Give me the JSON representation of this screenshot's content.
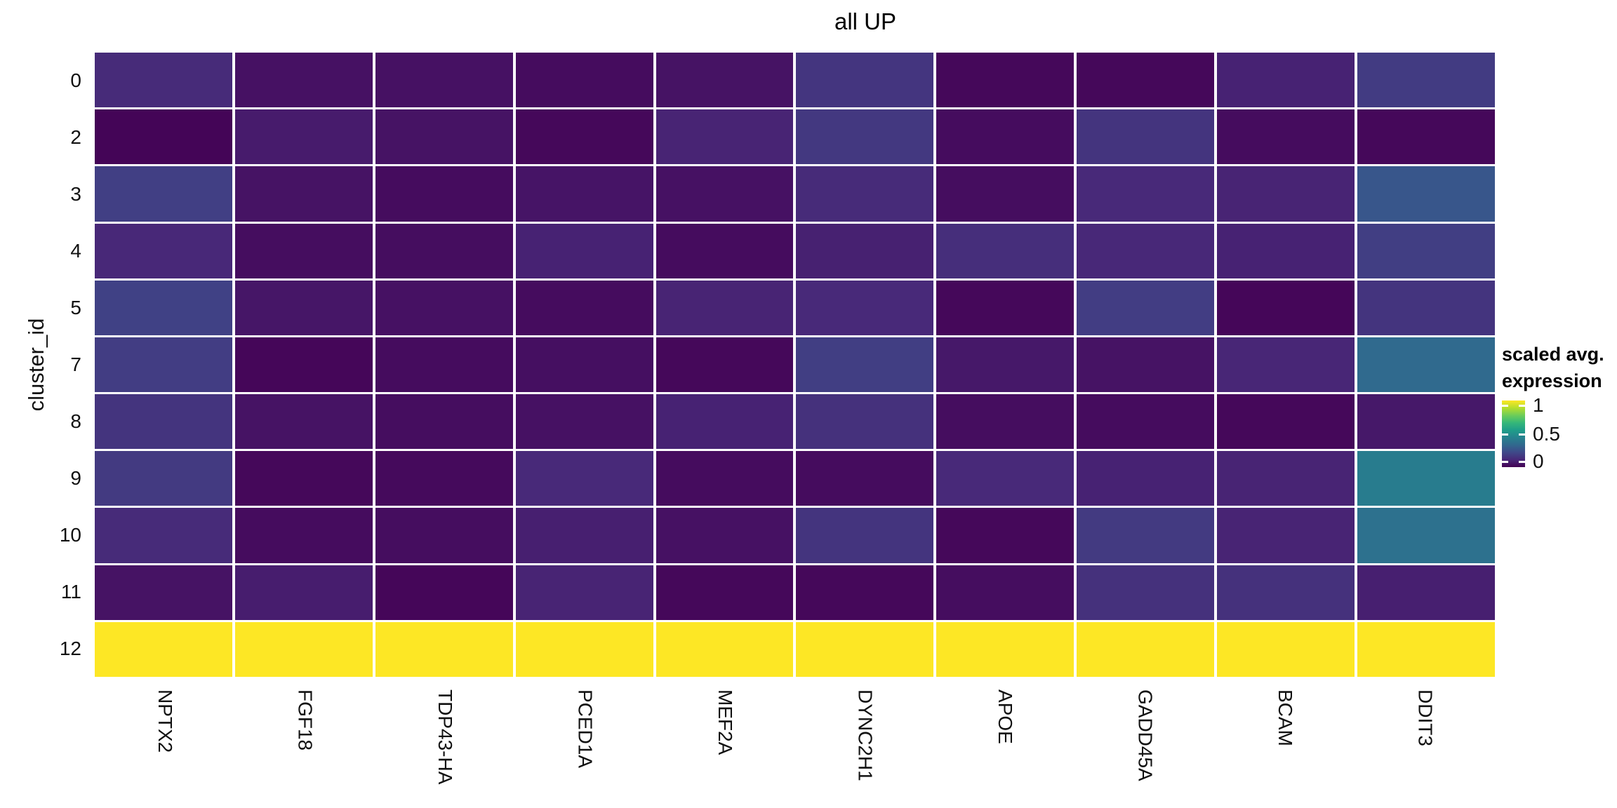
{
  "figure": {
    "background": "#ffffff"
  },
  "chart_data": {
    "type": "heatmap",
    "title": "all UP",
    "xlabel": "",
    "ylabel": "cluster_id",
    "x_tick_labels": [
      "NPTX2",
      "FGF18",
      "TDP43-HA",
      "PCED1A",
      "MEF2A",
      "DYNC2H1",
      "APOE",
      "GADD45A",
      "BCAM",
      "DDIT3"
    ],
    "y_tick_labels": [
      "0",
      "2",
      "3",
      "4",
      "5",
      "7",
      "8",
      "9",
      "10",
      "11",
      "12"
    ],
    "values_rows_by_columns": [
      [
        0.12,
        0.045,
        0.045,
        0.03,
        0.05,
        0.155,
        0.02,
        0.02,
        0.095,
        0.175
      ],
      [
        0.01,
        0.075,
        0.05,
        0.02,
        0.1,
        0.165,
        0.03,
        0.15,
        0.03,
        0.02
      ],
      [
        0.19,
        0.05,
        0.03,
        0.055,
        0.045,
        0.12,
        0.035,
        0.115,
        0.1,
        0.27
      ],
      [
        0.11,
        0.035,
        0.035,
        0.095,
        0.03,
        0.09,
        0.13,
        0.11,
        0.095,
        0.185
      ],
      [
        0.195,
        0.06,
        0.045,
        0.03,
        0.1,
        0.115,
        0.02,
        0.18,
        0.015,
        0.15
      ],
      [
        0.18,
        0.015,
        0.03,
        0.04,
        0.02,
        0.185,
        0.065,
        0.05,
        0.105,
        0.34
      ],
      [
        0.15,
        0.05,
        0.035,
        0.045,
        0.095,
        0.14,
        0.035,
        0.03,
        0.02,
        0.065
      ],
      [
        0.17,
        0.02,
        0.025,
        0.115,
        0.03,
        0.03,
        0.115,
        0.095,
        0.1,
        0.42
      ],
      [
        0.12,
        0.03,
        0.035,
        0.085,
        0.045,
        0.15,
        0.02,
        0.17,
        0.1,
        0.37
      ],
      [
        0.05,
        0.08,
        0.015,
        0.1,
        0.02,
        0.02,
        0.035,
        0.14,
        0.14,
        0.085
      ],
      [
        1,
        1,
        1,
        1,
        1,
        1,
        1,
        1,
        1,
        1
      ]
    ],
    "colormap": "viridis",
    "color_domain": [
      0,
      1
    ],
    "grid_line_color": "#ffffff",
    "colors": {
      "low": "#440154",
      "mid": "#21918c",
      "high": "#fde725"
    },
    "legend": {
      "title_line1": "scaled avg.",
      "title_line2": "expression",
      "tick_labels": [
        "1",
        "0.5",
        "0"
      ],
      "tick_values": [
        1,
        0.5,
        0
      ]
    }
  }
}
